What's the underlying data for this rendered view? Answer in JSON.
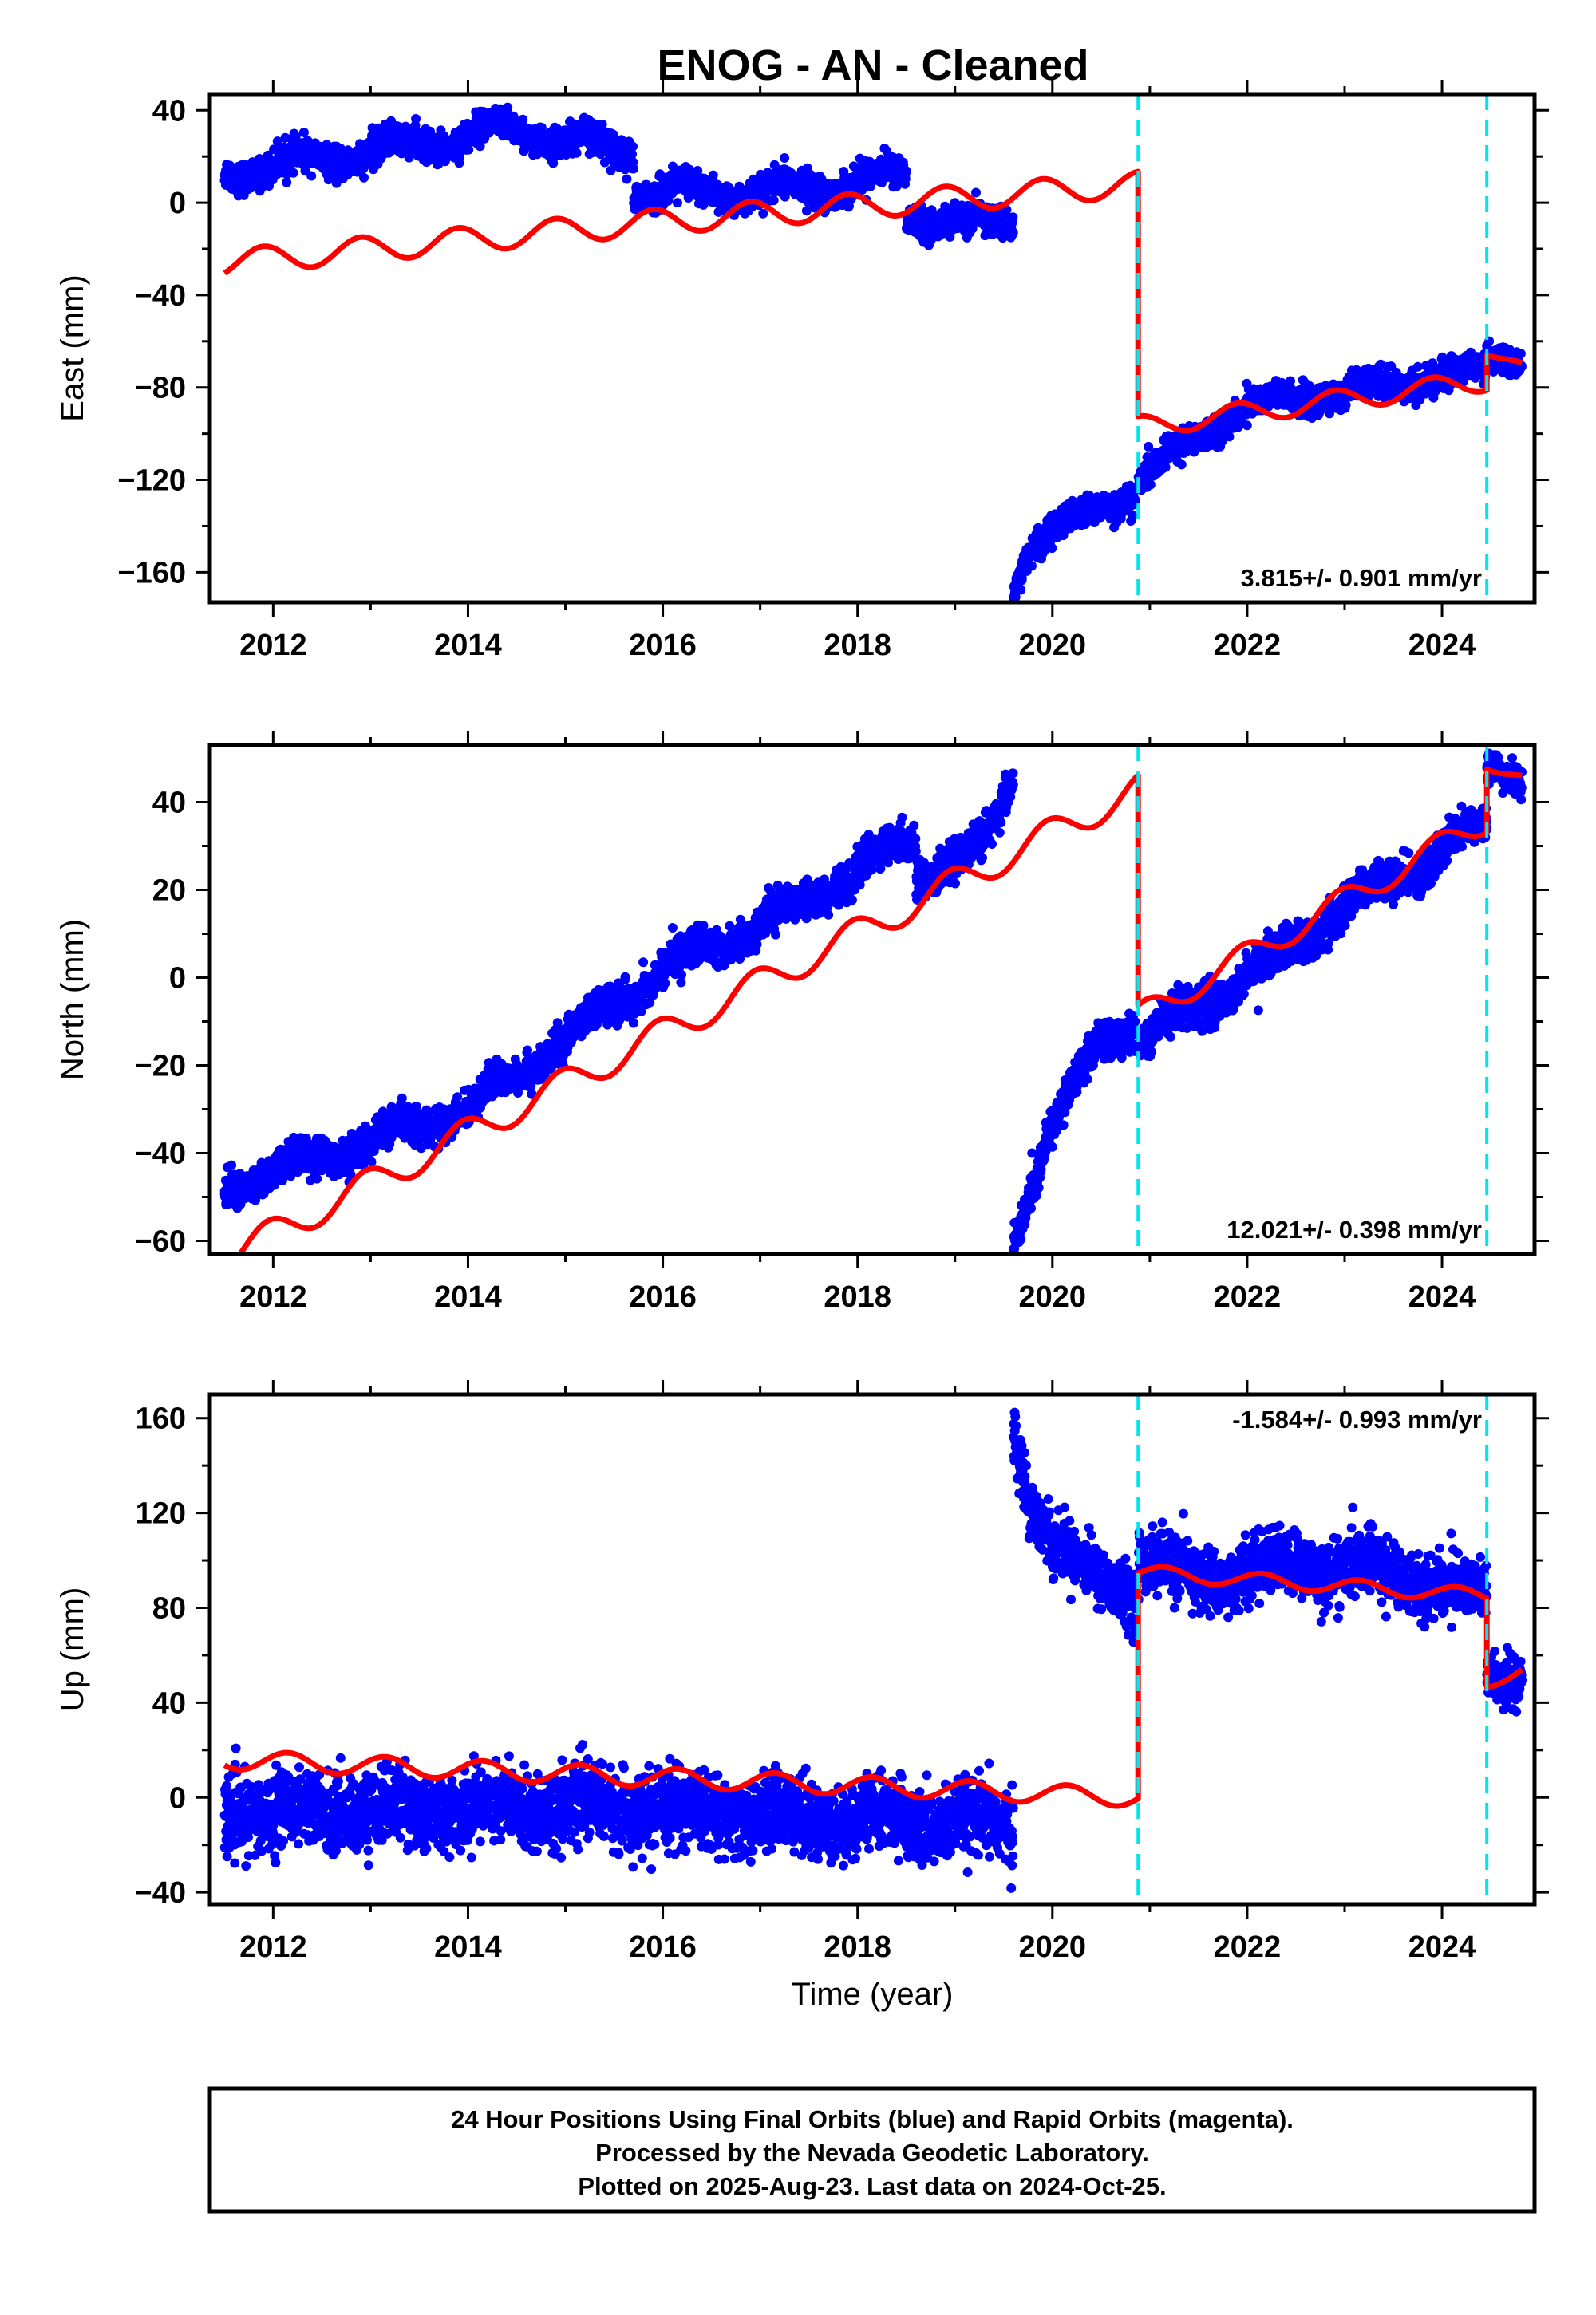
{
  "title": "ENOG  - AN - Cleaned",
  "footer": {
    "lines": [
      "24 Hour Positions Using Final Orbits (blue) and Rapid Orbits (magenta).",
      "Processed by the Nevada Geodetic Laboratory.",
      "Plotted on 2025-Aug-23. Last data on 2024-Oct-25."
    ]
  },
  "colors": {
    "data_points": "#0000ff",
    "model_fit": "#ff0000",
    "event_lines": "#00e5ee",
    "frame": "#000000"
  },
  "chart_data": [
    {
      "type": "scatter",
      "component": "east",
      "ylabel": "East (mm)",
      "xlabel": "",
      "xlim": [
        2011.35,
        2024.95
      ],
      "ylim": [
        -173,
        47
      ],
      "yticks": [
        -160,
        -120,
        -80,
        -40,
        0,
        40
      ],
      "xticks": [
        2012,
        2014,
        2016,
        2018,
        2020,
        2022,
        2024
      ],
      "rate_label": "3.815+/- 0.901 mm/yr",
      "event_lines_x": [
        2020.88,
        2024.46
      ],
      "model_segments": [
        {
          "start": 2011.5,
          "end": 2020.88,
          "anchors": [
            [
              2011.5,
              -26
            ],
            [
              2016.0,
              -8
            ],
            [
              2020.88,
              8
            ]
          ],
          "amplitude": 5.5,
          "phase": 0.35
        },
        {
          "start": 2020.88,
          "end": 2024.46,
          "anchors": [
            [
              2020.88,
              -97
            ],
            [
              2024.46,
              -77
            ]
          ],
          "amplitude": 4.5,
          "phase": 0.35
        },
        {
          "start": 2024.46,
          "end": 2024.82,
          "anchors": [
            [
              2024.46,
              -64
            ],
            [
              2024.82,
              -71
            ]
          ],
          "amplitude": 2,
          "phase": 0.35
        }
      ],
      "point_segments": [
        {
          "start": 2011.5,
          "end": 2015.7,
          "anchors": [
            [
              2011.5,
              13
            ],
            [
              2013.0,
              22
            ],
            [
              2014.4,
              32
            ],
            [
              2015.7,
              22
            ]
          ],
          "amplitude": 4,
          "noise": 3.2
        },
        {
          "start": 2015.7,
          "end": 2018.5,
          "anchors": [
            [
              2015.7,
              5
            ],
            [
              2017.0,
              4
            ],
            [
              2018.5,
              12
            ]
          ],
          "amplitude": 4,
          "noise": 3.2
        },
        {
          "start": 2018.5,
          "end": 2019.6,
          "anchors": [
            [
              2018.5,
              -7
            ],
            [
              2019.6,
              -9
            ]
          ],
          "amplitude": 2,
          "noise": 3
        },
        {
          "start": 2019.6,
          "end": 2020.85,
          "anchors": [
            [
              2019.6,
              -168
            ],
            [
              2019.75,
              -150
            ],
            [
              2020.0,
              -142
            ],
            [
              2020.4,
              -134
            ],
            [
              2020.85,
              -126
            ]
          ],
          "amplitude": 2,
          "noise": 3
        },
        {
          "start": 2020.88,
          "end": 2024.46,
          "anchors": [
            [
              2020.88,
              -120
            ],
            [
              2021.4,
              -104
            ],
            [
              2022.0,
              -88
            ],
            [
              2023.0,
              -82
            ],
            [
              2024.46,
              -72
            ]
          ],
          "amplitude": 2.5,
          "noise": 3
        },
        {
          "start": 2024.46,
          "end": 2024.82,
          "anchors": [
            [
              2024.46,
              -66
            ],
            [
              2024.82,
              -69
            ]
          ],
          "amplitude": 1,
          "noise": 2.5
        }
      ]
    },
    {
      "type": "scatter",
      "component": "north",
      "ylabel": "North (mm)",
      "xlabel": "",
      "xlim": [
        2011.35,
        2024.95
      ],
      "ylim": [
        -63,
        53
      ],
      "yticks": [
        -60,
        -40,
        -20,
        0,
        20,
        40
      ],
      "xticks": [
        2012,
        2014,
        2016,
        2018,
        2020,
        2022,
        2024
      ],
      "rate_label": "12.021+/- 0.398 mm/yr",
      "event_lines_x": [
        2020.88,
        2024.46
      ],
      "model_segments": [
        {
          "start": 2011.5,
          "end": 2020.88,
          "anchors": [
            [
              2011.5,
              -64
            ],
            [
              2020.88,
              43
            ]
          ],
          "amplitude": 3.5,
          "phase": 0.3
        },
        {
          "start": 2020.88,
          "end": 2024.46,
          "anchors": [
            [
              2020.88,
              -9
            ],
            [
              2024.46,
              36
            ]
          ],
          "amplitude": 3,
          "phase": 0.3
        },
        {
          "start": 2024.46,
          "end": 2024.82,
          "anchors": [
            [
              2024.46,
              49
            ],
            [
              2024.82,
              45
            ]
          ],
          "amplitude": 1.5,
          "phase": 0.3
        }
      ],
      "point_segments": [
        {
          "start": 2011.5,
          "end": 2018.6,
          "anchors": [
            [
              2011.5,
              -48
            ],
            [
              2014.0,
              -30
            ],
            [
              2016.0,
              2
            ],
            [
              2017.0,
              12
            ],
            [
              2018.6,
              32
            ]
          ],
          "amplitude": 2,
          "noise": 2
        },
        {
          "start": 2018.6,
          "end": 2019.6,
          "anchors": [
            [
              2018.6,
              23
            ],
            [
              2019.3,
              30
            ],
            [
              2019.6,
              46
            ]
          ],
          "amplitude": 1.5,
          "noise": 2
        },
        {
          "start": 2019.6,
          "end": 2020.85,
          "anchors": [
            [
              2019.6,
              -61
            ],
            [
              2020.0,
              -33
            ],
            [
              2020.5,
              -14
            ],
            [
              2020.85,
              -12
            ]
          ],
          "amplitude": 1,
          "noise": 2
        },
        {
          "start": 2020.88,
          "end": 2024.46,
          "anchors": [
            [
              2020.88,
              -14
            ],
            [
              2022.0,
              0
            ],
            [
              2023.0,
              16
            ],
            [
              2024.46,
              35
            ]
          ],
          "amplitude": 2,
          "noise": 2.2
        },
        {
          "start": 2024.46,
          "end": 2024.82,
          "anchors": [
            [
              2024.46,
              49
            ],
            [
              2024.82,
              45
            ]
          ],
          "amplitude": 1,
          "noise": 1.8
        }
      ]
    },
    {
      "type": "scatter",
      "component": "up",
      "ylabel": "Up (mm)",
      "xlabel": "Time (year)",
      "xlim": [
        2011.35,
        2024.95
      ],
      "ylim": [
        -45,
        170
      ],
      "yticks": [
        -40,
        0,
        40,
        80,
        120,
        160
      ],
      "xticks": [
        2012,
        2014,
        2016,
        2018,
        2020,
        2022,
        2024
      ],
      "rate_label": "-1.584+/- 0.993 mm/yr",
      "event_lines_x": [
        2020.88,
        2024.46
      ],
      "model_segments": [
        {
          "start": 2011.5,
          "end": 2020.88,
          "anchors": [
            [
              2011.5,
              16
            ],
            [
              2020.88,
              0
            ]
          ],
          "amplitude": 4,
          "phase": 0.1
        },
        {
          "start": 2020.88,
          "end": 2024.46,
          "anchors": [
            [
              2020.88,
              95
            ],
            [
              2024.46,
              85
            ]
          ],
          "amplitude": 3,
          "phase": 0.1
        },
        {
          "start": 2024.46,
          "end": 2024.82,
          "anchors": [
            [
              2024.46,
              47
            ],
            [
              2024.82,
              55
            ]
          ],
          "amplitude": 2,
          "phase": 0.1
        }
      ],
      "point_segments": [
        {
          "start": 2011.5,
          "end": 2019.6,
          "anchors": [
            [
              2011.5,
              -6
            ],
            [
              2015.0,
              -4
            ],
            [
              2019.6,
              -12
            ]
          ],
          "amplitude": 3,
          "noise": 7.5
        },
        {
          "start": 2019.6,
          "end": 2020.85,
          "anchors": [
            [
              2019.6,
              155
            ],
            [
              2019.75,
              128
            ],
            [
              2020.0,
              108
            ],
            [
              2020.5,
              92
            ],
            [
              2020.85,
              85
            ]
          ],
          "amplitude": 2,
          "noise": 6
        },
        {
          "start": 2020.88,
          "end": 2024.46,
          "anchors": [
            [
              2020.88,
              100
            ],
            [
              2021.5,
              92
            ],
            [
              2022.5,
              98
            ],
            [
              2023.5,
              95
            ],
            [
              2024.46,
              84
            ]
          ],
          "amplitude": 3,
          "noise": 6.5
        },
        {
          "start": 2024.46,
          "end": 2024.82,
          "anchors": [
            [
              2024.46,
              50
            ],
            [
              2024.82,
              50
            ]
          ],
          "amplitude": 2,
          "noise": 5
        }
      ]
    }
  ]
}
